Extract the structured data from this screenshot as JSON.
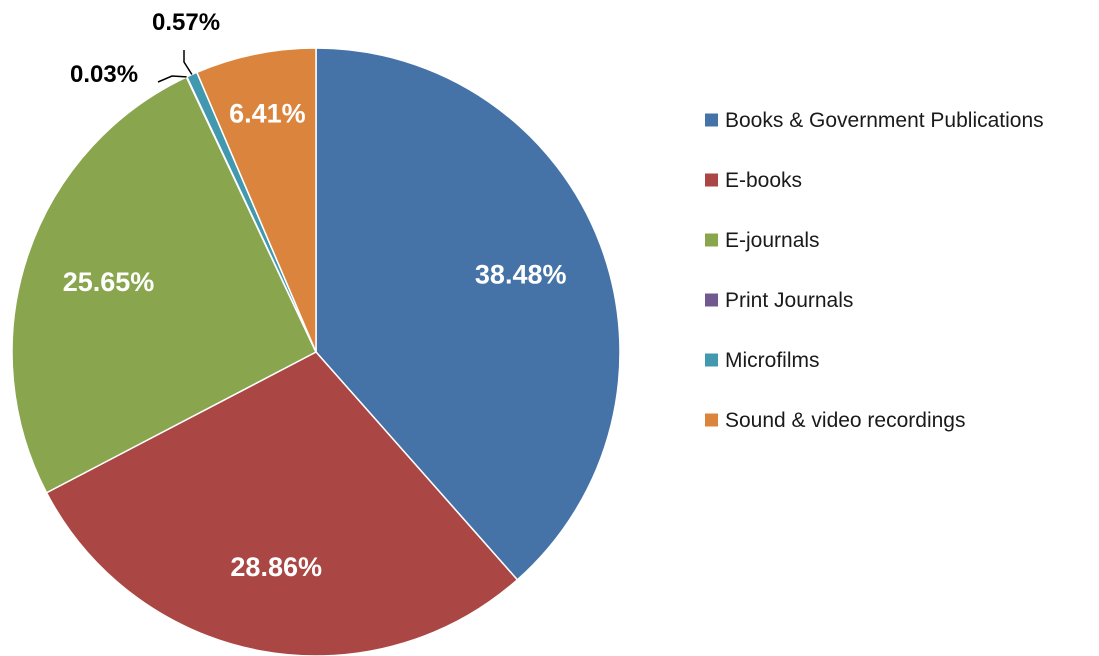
{
  "chart_data": {
    "type": "pie",
    "title": "",
    "legend_position": "right",
    "slices": [
      {
        "name": "Books & Government Publications",
        "value": 38.48,
        "label": "38.48%",
        "color": "#4572A7"
      },
      {
        "name": "E-books",
        "value": 28.86,
        "label": "28.86%",
        "color": "#AA4643"
      },
      {
        "name": "E-journals",
        "value": 25.65,
        "label": "25.65%",
        "color": "#89A54E"
      },
      {
        "name": "Print Journals",
        "value": 0.03,
        "label": "0.03%",
        "color": "#71588F"
      },
      {
        "name": "Microfilms",
        "value": 0.57,
        "label": "0.57%",
        "color": "#4198AF"
      },
      {
        "name": "Sound & video recordings",
        "value": 6.41,
        "label": "6.41%",
        "color": "#DB843D"
      }
    ]
  }
}
